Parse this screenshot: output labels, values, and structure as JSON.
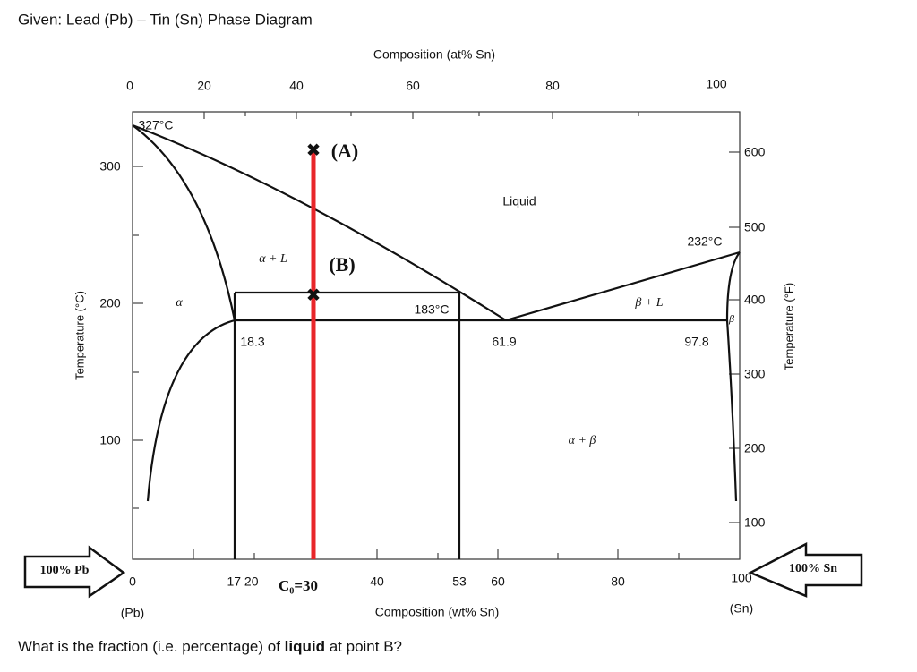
{
  "header": {
    "title": "Given: Lead (Pb) – Tin (Sn) Phase Diagram"
  },
  "top_axis": {
    "title": "Composition (at% Sn)",
    "labels": [
      "0",
      "20",
      "40",
      "60",
      "80",
      "100"
    ]
  },
  "bottom_axis": {
    "title": "Composition (wt% Sn)",
    "labels": [
      "0",
      "17 20",
      "C₀=30",
      "40",
      "53",
      "60",
      "80",
      "100"
    ],
    "left_end": "(Pb)",
    "right_end": "(Sn)"
  },
  "left_axis": {
    "title": "Temperature (°C)",
    "labels": [
      "300",
      "200",
      "100"
    ]
  },
  "right_axis": {
    "title": "Temperature (°F)",
    "labels": [
      "600",
      "500",
      "400",
      "300",
      "200",
      "100"
    ]
  },
  "annotations": [
    "327°C",
    "(A)",
    "Liquid",
    "232°C",
    "α + L",
    "(B)",
    "α",
    "183°C",
    "β + L",
    "β",
    "18.3",
    "61.9",
    "97.8",
    "α + β"
  ],
  "arrows": {
    "left": "100% Pb",
    "right": "100% Sn"
  },
  "question": {
    "before": "What is the fraction (i.e. percentage) of ",
    "bold": "liquid",
    "after": " at point B?"
  }
}
